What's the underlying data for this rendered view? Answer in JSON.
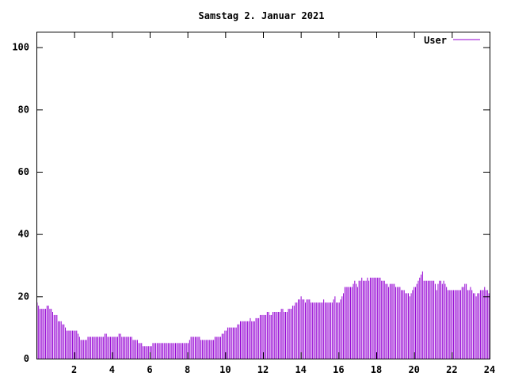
{
  "chart_data": {
    "type": "bar",
    "title": "Samstag 2. Januar 2021",
    "xlabel": "",
    "ylabel": "",
    "xlim": [
      0,
      24
    ],
    "ylim": [
      0,
      105
    ],
    "x_ticks": [
      2,
      4,
      6,
      8,
      10,
      12,
      14,
      16,
      18,
      20,
      22,
      24
    ],
    "y_ticks": [
      0,
      20,
      40,
      60,
      80,
      100
    ],
    "grid": false,
    "legend_position": "top-right",
    "series": [
      {
        "name": "User",
        "color": "#9400d3",
        "x_step_hours": 0.0833,
        "values": [
          18,
          17,
          16,
          16,
          16,
          16,
          16,
          17,
          17,
          16,
          16,
          15,
          14,
          14,
          14,
          12,
          12,
          12,
          11,
          11,
          10,
          9,
          9,
          9,
          9,
          9,
          9,
          9,
          9,
          8,
          7,
          6,
          6,
          6,
          6,
          6,
          7,
          7,
          7,
          7,
          7,
          7,
          7,
          7,
          7,
          7,
          7,
          7,
          8,
          8,
          7,
          7,
          7,
          7,
          7,
          7,
          7,
          7,
          8,
          8,
          7,
          7,
          7,
          7,
          7,
          7,
          7,
          7,
          6,
          6,
          6,
          6,
          5,
          5,
          5,
          4,
          4,
          4,
          4,
          4,
          4,
          4,
          5,
          5,
          5,
          5,
          5,
          5,
          5,
          5,
          5,
          5,
          5,
          5,
          5,
          5,
          5,
          5,
          5,
          5,
          5,
          5,
          5,
          5,
          5,
          5,
          5,
          5,
          6,
          7,
          7,
          7,
          7,
          7,
          7,
          7,
          6,
          6,
          6,
          6,
          6,
          6,
          6,
          6,
          6,
          6,
          7,
          7,
          7,
          7,
          7,
          8,
          8,
          9,
          9,
          10,
          10,
          10,
          10,
          10,
          10,
          10,
          11,
          11,
          12,
          12,
          12,
          12,
          12,
          12,
          12,
          13,
          12,
          12,
          12,
          13,
          13,
          13,
          14,
          14,
          14,
          14,
          14,
          15,
          15,
          14,
          14,
          15,
          15,
          15,
          15,
          15,
          15,
          16,
          16,
          15,
          15,
          15,
          16,
          16,
          16,
          17,
          17,
          18,
          18,
          19,
          19,
          20,
          19,
          19,
          18,
          19,
          19,
          19,
          18,
          18,
          18,
          18,
          18,
          18,
          18,
          18,
          18,
          19,
          18,
          18,
          18,
          18,
          18,
          18,
          19,
          20,
          18,
          18,
          18,
          19,
          20,
          21,
          23,
          23,
          23,
          23,
          23,
          23,
          24,
          25,
          24,
          23,
          25,
          25,
          26,
          25,
          25,
          25,
          26,
          25,
          26,
          26,
          26,
          26,
          26,
          26,
          26,
          26,
          25,
          25,
          25,
          24,
          24,
          23,
          24,
          24,
          24,
          24,
          23,
          23,
          23,
          23,
          22,
          22,
          22,
          21,
          21,
          21,
          20,
          21,
          22,
          23,
          23,
          24,
          25,
          26,
          27,
          28,
          25,
          25,
          25,
          25,
          25,
          25,
          25,
          25,
          24,
          22,
          24,
          25,
          25,
          24,
          25,
          24,
          23,
          22,
          22,
          22,
          22,
          22,
          22,
          22,
          22,
          22,
          22,
          23,
          23,
          24,
          24,
          22,
          22,
          23,
          22,
          21,
          21,
          20,
          21,
          21,
          22,
          22,
          22,
          23,
          22,
          22,
          21
        ]
      }
    ]
  }
}
